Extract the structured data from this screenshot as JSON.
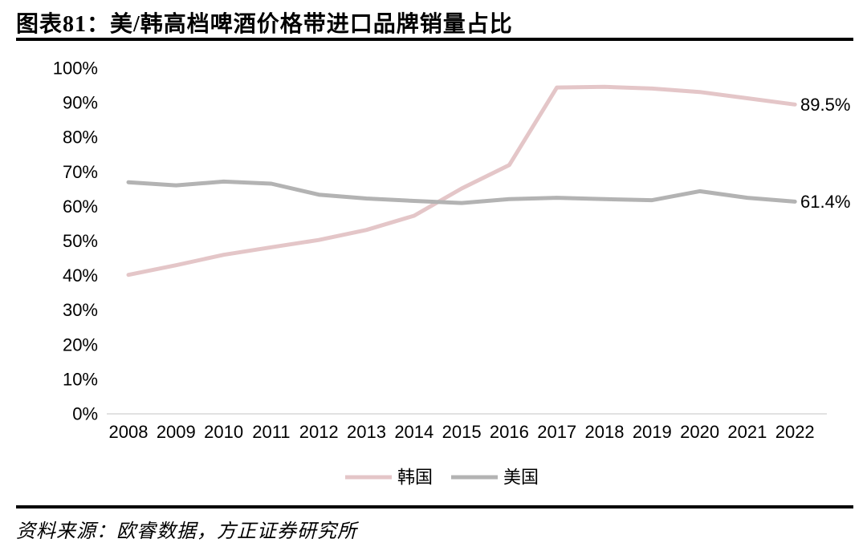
{
  "header": {
    "title": "图表81：美/韩高档啤酒价格带进口品牌销量占比"
  },
  "footer": {
    "source": "资料来源：欧睿数据，方正证券研究所"
  },
  "chart_data": {
    "type": "line",
    "title": "美/韩高档啤酒价格带进口品牌销量占比",
    "x": [
      2008,
      2009,
      2010,
      2011,
      2012,
      2013,
      2014,
      2015,
      2016,
      2017,
      2018,
      2019,
      2020,
      2021,
      2022
    ],
    "xlabel": "",
    "ylabel": "",
    "ylim": [
      0,
      100
    ],
    "ytick_step": 10,
    "ytick_suffix": "%",
    "grid": false,
    "legend_position": "bottom",
    "axis_color": "#D9D9D9",
    "label_color": "#000000",
    "series": [
      {
        "name": "韩国",
        "color": "#E4C6C8",
        "values": [
          40.2,
          43.0,
          46.0,
          48.2,
          50.3,
          53.2,
          57.3,
          65.2,
          72.0,
          94.4,
          94.6,
          94.1,
          93.1,
          91.3,
          89.5
        ],
        "end_label": "89.5%"
      },
      {
        "name": "美国",
        "color": "#B3B3B3",
        "values": [
          67.0,
          66.1,
          67.2,
          66.6,
          63.4,
          62.3,
          61.6,
          61.0,
          62.1,
          62.5,
          62.1,
          61.8,
          64.4,
          62.5,
          61.4
        ],
        "end_label": "61.4%"
      }
    ]
  }
}
